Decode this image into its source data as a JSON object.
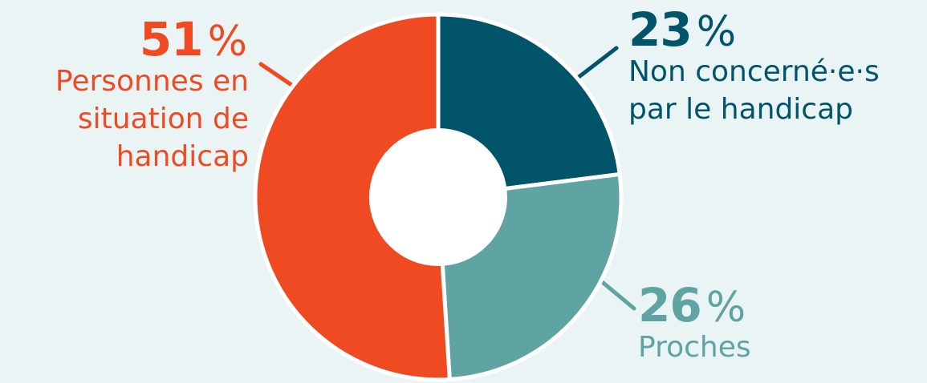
{
  "chart_data": {
    "type": "pie",
    "variant": "donut",
    "slices": [
      {
        "value": 23,
        "pct_label": "23",
        "pct_symbol": "%",
        "label_lines": [
          "Non concerné·e·s",
          "par le handicap"
        ],
        "color": "#02546b"
      },
      {
        "value": 26,
        "pct_label": "26",
        "pct_symbol": "%",
        "label_lines": [
          "Proches"
        ],
        "color": "#5fa3a3"
      },
      {
        "value": 51,
        "pct_label": "51",
        "pct_symbol": "%",
        "label_lines": [
          "Personnes en",
          "situation de",
          "handicap"
        ],
        "color": "#f04a23"
      }
    ],
    "legend": "callouts",
    "background": "#ebf4f5",
    "separator_color": "#ffffff"
  }
}
